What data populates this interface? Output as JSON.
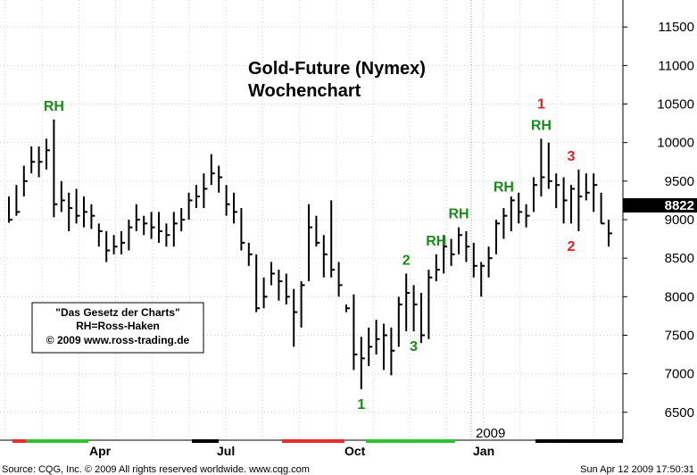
{
  "chart_data": {
    "type": "ohlc",
    "title": "Gold-Future (Nymex)",
    "subtitle": "Wochenchart",
    "ylim": [
      6150,
      11850
    ],
    "y_ticks": [
      6500,
      7000,
      7500,
      8000,
      8500,
      9000,
      9500,
      10000,
      10500,
      11000,
      11500
    ],
    "x_labels": [
      "Apr",
      "Jul",
      "Oct",
      "Jan"
    ],
    "year_label": "2009",
    "last_value": "8822",
    "grid": true,
    "legend": {
      "placement": "bottom-left",
      "lines": [
        "\"Das Gesetz der Charts\"",
        "RH=Ross-Haken",
        "© 2009 www.ross-trading.de"
      ]
    },
    "bars": [
      {
        "h": 9300,
        "l": 8960,
        "c": 9000
      },
      {
        "h": 9450,
        "l": 9050,
        "c": 9100
      },
      {
        "h": 9700,
        "l": 9300,
        "c": 9500
      },
      {
        "h": 9950,
        "l": 9600,
        "c": 9750
      },
      {
        "h": 9950,
        "l": 9550,
        "c": 9750
      },
      {
        "h": 10050,
        "l": 9650,
        "c": 9900
      },
      {
        "h": 10300,
        "l": 9030,
        "c": 9200
      },
      {
        "h": 9500,
        "l": 9100,
        "c": 9250
      },
      {
        "h": 9350,
        "l": 8850,
        "c": 9150
      },
      {
        "h": 9400,
        "l": 8950,
        "c": 9050
      },
      {
        "h": 9300,
        "l": 8900,
        "c": 9100
      },
      {
        "h": 9200,
        "l": 8880,
        "c": 9050
      },
      {
        "h": 8950,
        "l": 8650,
        "c": 8850
      },
      {
        "h": 8850,
        "l": 8450,
        "c": 8600
      },
      {
        "h": 8800,
        "l": 8550,
        "c": 8650
      },
      {
        "h": 8850,
        "l": 8550,
        "c": 8700
      },
      {
        "h": 9000,
        "l": 8600,
        "c": 8900
      },
      {
        "h": 9200,
        "l": 8850,
        "c": 9000
      },
      {
        "h": 9050,
        "l": 8800,
        "c": 8950
      },
      {
        "h": 9100,
        "l": 8750,
        "c": 8900
      },
      {
        "h": 9100,
        "l": 8700,
        "c": 8850
      },
      {
        "h": 8950,
        "l": 8650,
        "c": 8800
      },
      {
        "h": 9100,
        "l": 8650,
        "c": 8950
      },
      {
        "h": 9150,
        "l": 8850,
        "c": 9000
      },
      {
        "h": 9350,
        "l": 9000,
        "c": 9250
      },
      {
        "h": 9450,
        "l": 9150,
        "c": 9300
      },
      {
        "h": 9600,
        "l": 9150,
        "c": 9400
      },
      {
        "h": 9850,
        "l": 9450,
        "c": 9600
      },
      {
        "h": 9700,
        "l": 9350,
        "c": 9550
      },
      {
        "h": 9450,
        "l": 9050,
        "c": 9200
      },
      {
        "h": 9350,
        "l": 8950,
        "c": 9100
      },
      {
        "h": 9150,
        "l": 8600,
        "c": 8700
      },
      {
        "h": 8700,
        "l": 8400,
        "c": 8550
      },
      {
        "h": 8550,
        "l": 7800,
        "c": 7850
      },
      {
        "h": 8250,
        "l": 7850,
        "c": 8000
      },
      {
        "h": 8450,
        "l": 8150,
        "c": 8300
      },
      {
        "h": 8350,
        "l": 7950,
        "c": 8200
      },
      {
        "h": 8300,
        "l": 7900,
        "c": 8000
      },
      {
        "h": 8100,
        "l": 7350,
        "c": 7800
      },
      {
        "h": 8200,
        "l": 7600,
        "c": 8150
      },
      {
        "h": 9200,
        "l": 8200,
        "c": 8900
      },
      {
        "h": 9050,
        "l": 8650,
        "c": 8700
      },
      {
        "h": 8800,
        "l": 8250,
        "c": 8550
      },
      {
        "h": 9250,
        "l": 8250,
        "c": 8350
      },
      {
        "h": 8450,
        "l": 8000,
        "c": 8150
      },
      {
        "h": 7900,
        "l": 7800,
        "c": 7850
      },
      {
        "h": 8030,
        "l": 7050,
        "c": 7250
      },
      {
        "h": 7480,
        "l": 6800,
        "c": 7200
      },
      {
        "h": 7600,
        "l": 7100,
        "c": 7350
      },
      {
        "h": 7700,
        "l": 7250,
        "c": 7450
      },
      {
        "h": 7650,
        "l": 7050,
        "c": 7500
      },
      {
        "h": 7600,
        "l": 6980,
        "c": 7300
      },
      {
        "h": 8000,
        "l": 7350,
        "c": 7900
      },
      {
        "h": 8300,
        "l": 7550,
        "c": 8050
      },
      {
        "h": 8150,
        "l": 7550,
        "c": 7900
      },
      {
        "h": 8050,
        "l": 7400,
        "c": 7500
      },
      {
        "h": 8350,
        "l": 7450,
        "c": 8250
      },
      {
        "h": 8550,
        "l": 8200,
        "c": 8350
      },
      {
        "h": 8800,
        "l": 8300,
        "c": 8650
      },
      {
        "h": 8750,
        "l": 8400,
        "c": 8550
      },
      {
        "h": 8900,
        "l": 8550,
        "c": 8800
      },
      {
        "h": 8850,
        "l": 8450,
        "c": 8650
      },
      {
        "h": 8700,
        "l": 8250,
        "c": 8400
      },
      {
        "h": 8450,
        "l": 8000,
        "c": 8400
      },
      {
        "h": 8650,
        "l": 8250,
        "c": 8500
      },
      {
        "h": 9000,
        "l": 8550,
        "c": 8950
      },
      {
        "h": 9150,
        "l": 8750,
        "c": 9050
      },
      {
        "h": 9300,
        "l": 8850,
        "c": 9250
      },
      {
        "h": 9350,
        "l": 8950,
        "c": 9100
      },
      {
        "h": 9200,
        "l": 8900,
        "c": 9050
      },
      {
        "h": 9550,
        "l": 9100,
        "c": 9450
      },
      {
        "h": 10050,
        "l": 9300,
        "c": 9550
      },
      {
        "h": 10000,
        "l": 9400,
        "c": 9500
      },
      {
        "h": 9600,
        "l": 9150,
        "c": 9450
      },
      {
        "h": 9550,
        "l": 8950,
        "c": 9250
      },
      {
        "h": 9450,
        "l": 8950,
        "c": 9400
      },
      {
        "h": 9650,
        "l": 8850,
        "c": 9300
      },
      {
        "h": 9600,
        "l": 9250,
        "c": 9350
      },
      {
        "h": 9600,
        "l": 9100,
        "c": 9450
      },
      {
        "h": 9350,
        "l": 8950,
        "c": 8950
      },
      {
        "h": 9000,
        "l": 8650,
        "c": 8822
      }
    ],
    "annotations": [
      {
        "text": "RH",
        "bar": 6,
        "price": 10300,
        "color": "#1a8a1a",
        "pos": "above"
      },
      {
        "text": "1",
        "bar": 47,
        "price": 6800,
        "color": "#1a8a1a",
        "pos": "below"
      },
      {
        "text": "2",
        "bar": 53,
        "price": 8300,
        "color": "#1a8a1a",
        "pos": "above"
      },
      {
        "text": "3",
        "bar": 54,
        "price": 7550,
        "color": "#1a8a1a",
        "pos": "below"
      },
      {
        "text": "RH",
        "bar": 57,
        "price": 8550,
        "color": "#1a8a1a",
        "pos": "above"
      },
      {
        "text": "RH",
        "bar": 60,
        "price": 8900,
        "color": "#1a8a1a",
        "pos": "above"
      },
      {
        "text": "RH",
        "bar": 66,
        "price": 9250,
        "color": "#1a8a1a",
        "pos": "above"
      },
      {
        "text": "RH",
        "bar": 71,
        "price": 10050,
        "color": "#1a8a1a",
        "pos": "above"
      },
      {
        "text": "1",
        "bar": 71,
        "price": 10050,
        "color": "#e02020",
        "pos": "above2"
      },
      {
        "text": "3",
        "bar": 75,
        "price": 9650,
        "color": "#e02020",
        "pos": "above"
      },
      {
        "text": "2",
        "bar": 75,
        "price": 8850,
        "color": "#e02020",
        "pos": "below"
      }
    ]
  },
  "footer": {
    "source": "Source: CQG, Inc. © 2009 All rights reserved worldwide. www.cqg.com",
    "timestamp": "Sun Apr 12 2009  17:50:31"
  },
  "colors": {
    "grid": "#d0d0d0",
    "bars": "#000000",
    "annotation_green": "#1a8a1a",
    "annotation_red": "#e02020",
    "strip_red": "#e03030",
    "strip_green": "#30c030"
  }
}
